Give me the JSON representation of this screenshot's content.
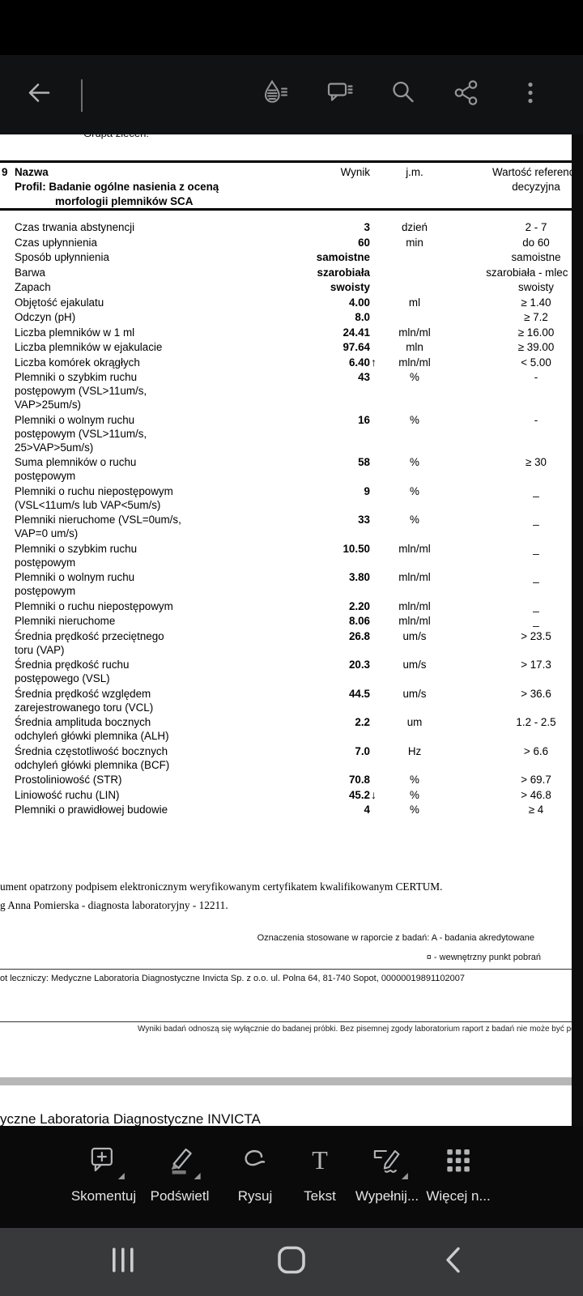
{
  "top_toolbar": {
    "icons": [
      {
        "name": "back-arrow-icon"
      },
      {
        "name": "liquid-mode-icon"
      },
      {
        "name": "comments-icon"
      },
      {
        "name": "search-icon"
      },
      {
        "name": "share-icon"
      },
      {
        "name": "overflow-menu-icon"
      }
    ]
  },
  "document": {
    "clipped_top_text": "Grupa zleceń:",
    "table": {
      "row_marker": "9",
      "header": {
        "name": "Nazwa",
        "result": "Wynik",
        "unit": "j.m.",
        "reference_line1": "Wartość referenc",
        "reference_line2": "decyzyjna",
        "profile_line1": "Profil: Badanie ogólne nasienia z oceną",
        "profile_line2": "morfologii plemników SCA"
      },
      "rows": [
        {
          "label_lines": [
            "Czas trwania abstynencji"
          ],
          "result": "3",
          "flag": "",
          "unit": "dzień",
          "ref": "2 - 7"
        },
        {
          "label_lines": [
            "Czas upłynnienia"
          ],
          "result": "60",
          "flag": "",
          "unit": "min",
          "ref": "do 60"
        },
        {
          "label_lines": [
            "Sposób upłynnienia"
          ],
          "result": "samoistne",
          "flag": "",
          "unit": "",
          "ref": "samoistne"
        },
        {
          "label_lines": [
            "Barwa"
          ],
          "result": "szarobiała",
          "flag": "",
          "unit": "",
          "ref": "szarobiała - mlec      "
        },
        {
          "label_lines": [
            "Zapach"
          ],
          "result": "swoisty",
          "flag": "",
          "unit": "",
          "ref": "swoisty"
        },
        {
          "label_lines": [
            "Objętość ejakulatu"
          ],
          "result": "4.00",
          "flag": "",
          "unit": "ml",
          "ref": "≥ 1.40"
        },
        {
          "label_lines": [
            "Odczyn (pH)"
          ],
          "result": "8.0",
          "flag": "",
          "unit": "",
          "ref": "≥ 7.2"
        },
        {
          "label_lines": [
            "Liczba plemników w 1 ml"
          ],
          "result": "24.41",
          "flag": "",
          "unit": "mln/ml",
          "ref": "≥ 16.00"
        },
        {
          "label_lines": [
            "Liczba plemników w ejakulacie"
          ],
          "result": "97.64",
          "flag": "",
          "unit": "mln",
          "ref": "≥ 39.00"
        },
        {
          "label_lines": [
            "Liczba komórek okrągłych"
          ],
          "result": "6.40",
          "flag": "up",
          "unit": "mln/ml",
          "ref": "< 5.00"
        },
        {
          "label_lines": [
            "Plemniki o szybkim ruchu",
            "postępowym (VSL>11um/s,",
            "VAP>25um/s)"
          ],
          "result": "43",
          "flag": "",
          "unit": "%",
          "ref": "-"
        },
        {
          "label_lines": [
            "Plemniki o wolnym ruchu",
            "postępowym (VSL>11um/s,",
            "25>VAP>5um/s)"
          ],
          "result": "16",
          "flag": "",
          "unit": "%",
          "ref": "-"
        },
        {
          "label_lines": [
            "Suma plemników o ruchu",
            "postępowym"
          ],
          "result": "58",
          "flag": "",
          "unit": "%",
          "ref": "≥ 30"
        },
        {
          "label_lines": [
            "Plemniki o ruchu niepostępowym",
            "(VSL<11um/s lub VAP<5um/s)"
          ],
          "result": "9",
          "flag": "",
          "unit": "%",
          "ref": "_"
        },
        {
          "label_lines": [
            "Plemniki nieruchome (VSL=0um/s,",
            "VAP=0 um/s)"
          ],
          "result": "33",
          "flag": "",
          "unit": "%",
          "ref": "_"
        },
        {
          "label_lines": [
            "Plemniki o szybkim ruchu",
            "postępowym"
          ],
          "result": "10.50",
          "flag": "",
          "unit": "mln/ml",
          "ref": "_"
        },
        {
          "label_lines": [
            "Plemniki o wolnym ruchu",
            "postępowym"
          ],
          "result": "3.80",
          "flag": "",
          "unit": "mln/ml",
          "ref": "_"
        },
        {
          "label_lines": [
            "Plemniki o ruchu niepostępowym"
          ],
          "result": "2.20",
          "flag": "",
          "unit": "mln/ml",
          "ref": "_"
        },
        {
          "label_lines": [
            "Plemniki nieruchome"
          ],
          "result": "8.06",
          "flag": "",
          "unit": "mln/ml",
          "ref": "_"
        },
        {
          "label_lines": [
            "Średnia prędkość przeciętnego",
            "toru (VAP)"
          ],
          "result": "26.8",
          "flag": "",
          "unit": "um/s",
          "ref": "> 23.5"
        },
        {
          "label_lines": [
            "Średnia prędkość ruchu",
            "postępowego (VSL)"
          ],
          "result": "20.3",
          "flag": "",
          "unit": "um/s",
          "ref": "> 17.3"
        },
        {
          "label_lines": [
            "Średnia prędkość względem",
            "zarejestrowanego toru (VCL)"
          ],
          "result": "44.5",
          "flag": "",
          "unit": "um/s",
          "ref": "> 36.6"
        },
        {
          "label_lines": [
            "Średnia amplituda bocznych",
            "odchyleń główki plemnika (ALH)"
          ],
          "result": "2.2",
          "flag": "",
          "unit": "um",
          "ref": "1.2 - 2.5"
        },
        {
          "label_lines": [
            "Średnia częstotliwość bocznych",
            "odchyleń główki plemnika (BCF)"
          ],
          "result": "7.0",
          "flag": "",
          "unit": "Hz",
          "ref": "> 6.6"
        },
        {
          "label_lines": [
            "Prostoliniowość (STR)"
          ],
          "result": "70.8",
          "flag": "",
          "unit": "%",
          "ref": "> 69.7"
        },
        {
          "label_lines": [
            "Liniowość ruchu (LIN)"
          ],
          "result": "45.2",
          "flag": "down",
          "unit": "%",
          "ref": "> 46.8"
        },
        {
          "label_lines": [
            "Plemniki o prawidłowej budowie"
          ],
          "result": "4",
          "flag": "",
          "unit": "%",
          "ref": "≥ 4"
        }
      ]
    },
    "signature_line1": "ument opatrzony podpisem elektronicznym weryfikowanym certyfikatem kwalifikowanym CERTUM.",
    "signature_line2": "g Anna Pomierska - diagnosta laboratoryjny - 12211.",
    "legend_line1": "Oznaczenia stosowane w raporcie z badań: A - badania akredytowane",
    "legend_line2": "¤ - wewnętrzny punkt pobrań",
    "facility_line": "ot leczniczy: Medyczne Laboratoria Diagnostyczne Invicta Sp. z o.o. ul. Polna 64, 81-740 Sopot, 00000019891102007",
    "disclaimer_line": "Wyniki badań odnoszą się wyłącznie do badanej próbki. Bez pisemnej zgody laboratorium raport z badań nie może być powielany",
    "next_page_header": "yczne Laboratoria Diagnostyczne INVICTA"
  },
  "bottom_toolbar": {
    "items": [
      {
        "label": "Skomentuj",
        "icon": "comment-add-icon"
      },
      {
        "label": "Podświetl",
        "icon": "highlighter-icon"
      },
      {
        "label": "Rysuj",
        "icon": "draw-icon"
      },
      {
        "label": "Tekst",
        "icon": "text-tool-icon"
      },
      {
        "label": "Wypełnij...",
        "icon": "fill-sign-icon"
      },
      {
        "label": "Więcej n...",
        "icon": "more-tools-icon"
      }
    ]
  },
  "nav_bar": {
    "icons": [
      {
        "name": "recents-icon"
      },
      {
        "name": "home-icon"
      },
      {
        "name": "back-icon"
      }
    ]
  },
  "colors": {
    "status_bar": "#000000",
    "toolbar_bg": "#111213",
    "bottom_toolbar_bg": "#0a0a0b",
    "nav_bg": "#38393b",
    "page_separator": "#b7b7b7",
    "icon_gray": "#9b9da0"
  }
}
